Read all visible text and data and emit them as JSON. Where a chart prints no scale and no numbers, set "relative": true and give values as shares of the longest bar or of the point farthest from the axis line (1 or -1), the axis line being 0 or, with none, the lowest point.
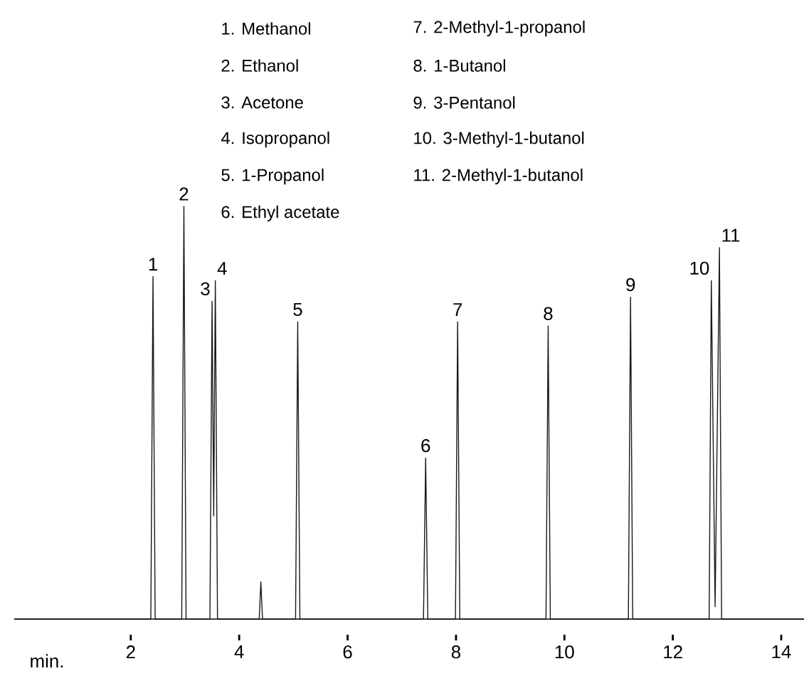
{
  "chart_data": {
    "type": "line",
    "relative": true,
    "xlabel": "min.",
    "xlim": [
      -0.15,
      14.42
    ],
    "xticks": [
      2,
      4,
      6,
      8,
      10,
      12,
      14
    ],
    "grid": false,
    "marker": "none",
    "line_style": "solid",
    "series": [
      {
        "color": "#1a1a1a",
        "x": [
          -0.15,
          2.37,
          2.41,
          2.45,
          2.94,
          2.98,
          3.02,
          3.46,
          3.5,
          3.53,
          3.56,
          3.6,
          4.37,
          4.4,
          4.43,
          5.04,
          5.08,
          5.12,
          7.4,
          7.44,
          7.48,
          7.99,
          8.03,
          8.07,
          9.66,
          9.7,
          9.74,
          11.18,
          11.22,
          11.26,
          12.67,
          12.71,
          12.78,
          12.86,
          12.9,
          14.42
        ],
        "values": [
          0,
          0,
          0.83,
          0,
          0,
          1.0,
          0,
          0,
          0.77,
          0.25,
          0.82,
          0,
          0,
          0.09,
          0,
          0,
          0.72,
          0,
          0,
          0.39,
          0,
          0,
          0.72,
          0,
          0,
          0.71,
          0,
          0,
          0.78,
          0,
          0,
          0.82,
          0.03,
          0.9,
          0,
          0
        ]
      }
    ],
    "annotations": [
      "1.  Methanol",
      "2.  Ethanol",
      "3.  Acetone",
      "4.  Isopropanol",
      "5.  1-Propanol",
      "6.  Ethyl acetate",
      "7.  2-Methyl-1-propanol",
      "8.  1-Butanol",
      "9.  3-Pentanol",
      "10.  3-Methyl-1-butanol",
      "11.  2-Methyl-1-butanol",
      {
        "text": "1",
        "x": 2.41,
        "y": 0.83
      },
      {
        "text": "2",
        "x": 2.98,
        "y": 1.0
      },
      {
        "text": "3",
        "x": 3.5,
        "y": 0.77
      },
      {
        "text": "4",
        "x": 3.56,
        "y": 0.82
      },
      {
        "text": "5",
        "x": 5.08,
        "y": 0.72
      },
      {
        "text": "6",
        "x": 7.44,
        "y": 0.39
      },
      {
        "text": "7",
        "x": 8.03,
        "y": 0.72
      },
      {
        "text": "8",
        "x": 9.7,
        "y": 0.71
      },
      {
        "text": "9",
        "x": 11.22,
        "y": 0.78
      },
      {
        "text": "10",
        "x": 12.71,
        "y": 0.82
      },
      {
        "text": "11",
        "x": 12.86,
        "y": 0.9
      }
    ]
  }
}
